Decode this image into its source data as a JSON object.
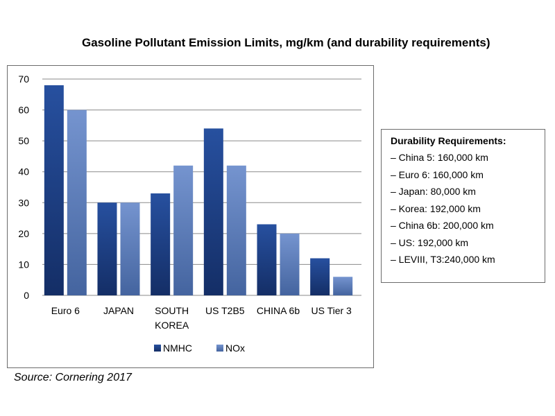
{
  "chart_data": {
    "type": "bar",
    "title": "Gasoline Pollutant Emission Limits, mg/km (and durability requirements)",
    "categories": [
      "Euro 6",
      "JAPAN",
      "SOUTH KOREA",
      "US T2B5",
      "CHINA 6b",
      "US Tier 3"
    ],
    "series": [
      {
        "name": "NMHC",
        "values": [
          68,
          30,
          33,
          54,
          23,
          12
        ],
        "color": "#1f4391"
      },
      {
        "name": "NOx",
        "values": [
          60,
          30,
          42,
          42,
          20,
          6
        ],
        "color": "#5b80c2"
      }
    ],
    "ylim": [
      0,
      70
    ],
    "yticks": [
      0,
      10,
      20,
      30,
      40,
      50,
      60,
      70
    ],
    "grid": true,
    "legend_position": "bottom"
  },
  "durability": {
    "title": "Durability Requirements:",
    "items": [
      "– China 5: 160,000 km",
      "– Euro 6: 160,000 km",
      "– Japan: 80,000 km",
      "– Korea: 192,000 km",
      "– China 6b: 200,000 km",
      "– US: 192,000 km",
      "– LEVIII, T3:240,000 km"
    ]
  },
  "source": "Source: Cornering 2017"
}
